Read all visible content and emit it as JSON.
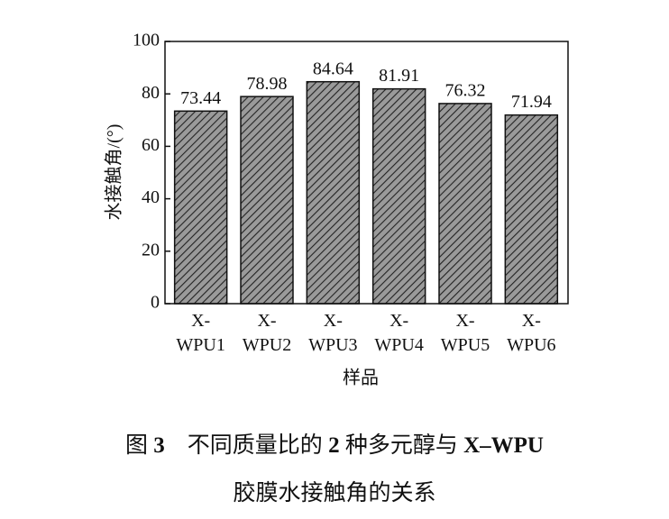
{
  "chart_data": {
    "type": "bar",
    "y_label": "水接触角/(°)",
    "x_label": "样品",
    "categories": [
      "X-\nWPU1",
      "X-\nWPU2",
      "X-\nWPU3",
      "X-\nWPU4",
      "X-\nWPU5",
      "X-\nWPU6"
    ],
    "values": [
      73.44,
      78.98,
      84.64,
      81.91,
      76.32,
      71.94
    ],
    "color": "#9a9a9a",
    "ylim": [
      0,
      100
    ],
    "yticks": [
      0,
      20,
      40,
      60,
      80,
      100
    ],
    "grid": false,
    "caption": [
      [
        "图",
        "3",
        "不同质量比的",
        "2",
        "种多元醇与",
        "X–WPU"
      ],
      [
        "胶膜水接触角的关系"
      ]
    ]
  }
}
